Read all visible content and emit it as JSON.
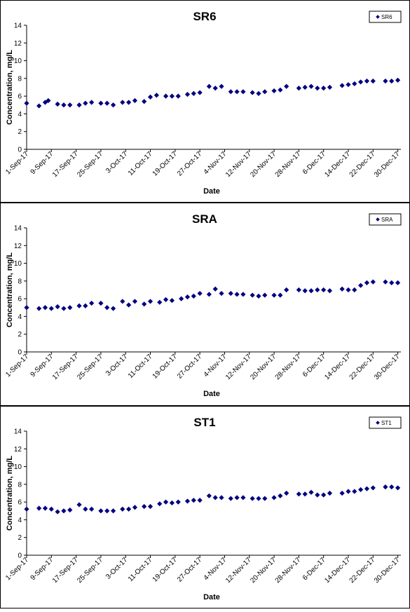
{
  "chart_data": [
    {
      "type": "scatter",
      "title": "SR6",
      "xlabel": "Date",
      "ylabel": "Concentration, mg/L",
      "ylim": [
        0,
        14
      ],
      "yticks": [
        "0",
        "2",
        "4",
        "6",
        "8",
        "10",
        "12",
        "14"
      ],
      "xlim": [
        "2017-09-01",
        "2017-12-31"
      ],
      "xtick_labels": [
        "1-Sep-17",
        "9-Sep-17",
        "17-Sep-17",
        "25-Sep-17",
        "3-Oct-17",
        "11-Oct-17",
        "19-Oct-17",
        "27-Oct-17",
        "4-Nov-17",
        "12-Nov-17",
        "20-Nov-17",
        "28-Nov-17",
        "6-Dec-17",
        "14-Dec-17",
        "22-Dec-17",
        "30-Dec-17"
      ],
      "grid": false,
      "legend_position": "top-right",
      "series": [
        {
          "name": "SR6",
          "color": "#000080",
          "marker": "diamond",
          "x": [
            "2017-09-01",
            "2017-09-05",
            "2017-09-07",
            "2017-09-08",
            "2017-09-11",
            "2017-09-13",
            "2017-09-15",
            "2017-09-18",
            "2017-09-20",
            "2017-09-22",
            "2017-09-25",
            "2017-09-27",
            "2017-09-29",
            "2017-10-02",
            "2017-10-04",
            "2017-10-06",
            "2017-10-09",
            "2017-10-11",
            "2017-10-13",
            "2017-10-16",
            "2017-10-18",
            "2017-10-20",
            "2017-10-23",
            "2017-10-25",
            "2017-10-27",
            "2017-10-30",
            "2017-11-01",
            "2017-11-03",
            "2017-11-06",
            "2017-11-08",
            "2017-11-10",
            "2017-11-13",
            "2017-11-15",
            "2017-11-17",
            "2017-11-20",
            "2017-11-22",
            "2017-11-24",
            "2017-11-28",
            "2017-11-30",
            "2017-12-02",
            "2017-12-04",
            "2017-12-06",
            "2017-12-08",
            "2017-12-12",
            "2017-12-14",
            "2017-12-16",
            "2017-12-18",
            "2017-12-20",
            "2017-12-22",
            "2017-12-26",
            "2017-12-28",
            "2017-12-30"
          ],
          "y": [
            5.2,
            4.9,
            5.3,
            5.5,
            5.1,
            5.0,
            5.0,
            5.0,
            5.2,
            5.3,
            5.2,
            5.2,
            5.0,
            5.3,
            5.3,
            5.5,
            5.4,
            5.9,
            6.1,
            6.0,
            6.0,
            6.0,
            6.2,
            6.3,
            6.4,
            7.1,
            6.9,
            7.1,
            6.5,
            6.5,
            6.5,
            6.4,
            6.3,
            6.5,
            6.6,
            6.7,
            7.1,
            6.9,
            7.0,
            7.1,
            6.9,
            6.9,
            7.0,
            7.2,
            7.3,
            7.4,
            7.6,
            7.7,
            7.7,
            7.7,
            7.7,
            7.8
          ]
        }
      ]
    },
    {
      "type": "scatter",
      "title": "SRA",
      "xlabel": "Date",
      "ylabel": "Concentration, mg/L",
      "ylim": [
        0,
        14
      ],
      "yticks": [
        "0",
        "2",
        "4",
        "6",
        "8",
        "10",
        "12",
        "14"
      ],
      "xlim": [
        "2017-09-01",
        "2017-12-31"
      ],
      "xtick_labels": [
        "1-Sep-17",
        "9-Sep-17",
        "17-Sep-17",
        "25-Sep-17",
        "3-Oct-17",
        "11-Oct-17",
        "19-Oct-17",
        "27-Oct-17",
        "4-Nov-17",
        "12-Nov-17",
        "20-Nov-17",
        "28-Nov-17",
        "6-Dec-17",
        "14-Dec-17",
        "22-Dec-17",
        "30-Dec-17"
      ],
      "grid": false,
      "legend_position": "top-right",
      "series": [
        {
          "name": "SRA",
          "color": "#000080",
          "marker": "diamond",
          "x": [
            "2017-09-01",
            "2017-09-05",
            "2017-09-07",
            "2017-09-09",
            "2017-09-11",
            "2017-09-13",
            "2017-09-15",
            "2017-09-18",
            "2017-09-20",
            "2017-09-22",
            "2017-09-25",
            "2017-09-27",
            "2017-09-29",
            "2017-10-02",
            "2017-10-04",
            "2017-10-06",
            "2017-10-09",
            "2017-10-11",
            "2017-10-14",
            "2017-10-16",
            "2017-10-18",
            "2017-10-21",
            "2017-10-23",
            "2017-10-25",
            "2017-10-27",
            "2017-10-30",
            "2017-11-01",
            "2017-11-03",
            "2017-11-06",
            "2017-11-08",
            "2017-11-10",
            "2017-11-13",
            "2017-11-15",
            "2017-11-17",
            "2017-11-20",
            "2017-11-22",
            "2017-11-24",
            "2017-11-28",
            "2017-11-30",
            "2017-12-02",
            "2017-12-04",
            "2017-12-06",
            "2017-12-08",
            "2017-12-12",
            "2017-12-14",
            "2017-12-16",
            "2017-12-18",
            "2017-12-20",
            "2017-12-22",
            "2017-12-26",
            "2017-12-28",
            "2017-12-30"
          ],
          "y": [
            5.0,
            4.9,
            5.0,
            4.9,
            5.1,
            4.9,
            5.0,
            5.2,
            5.2,
            5.5,
            5.5,
            5.0,
            4.9,
            5.7,
            5.3,
            5.7,
            5.4,
            5.7,
            5.6,
            5.9,
            5.8,
            6.0,
            6.2,
            6.3,
            6.6,
            6.5,
            7.1,
            6.6,
            6.6,
            6.5,
            6.5,
            6.4,
            6.3,
            6.4,
            6.4,
            6.4,
            7.0,
            7.0,
            6.9,
            6.9,
            7.0,
            7.0,
            6.9,
            7.1,
            7.0,
            7.0,
            7.5,
            7.8,
            7.9,
            7.9,
            7.8,
            7.8
          ]
        }
      ]
    },
    {
      "type": "scatter",
      "title": "ST1",
      "xlabel": "Date",
      "ylabel": "Concentration, mg/L",
      "ylim": [
        0,
        14
      ],
      "yticks": [
        "0",
        "2",
        "4",
        "6",
        "8",
        "10",
        "12",
        "14"
      ],
      "xlim": [
        "2017-09-01",
        "2017-12-31"
      ],
      "xtick_labels": [
        "1-Sep-17",
        "9-Sep-17",
        "17-Sep-17",
        "25-Sep-17",
        "3-Oct-17",
        "11-Oct-17",
        "19-Oct-17",
        "27-Oct-17",
        "4-Nov-17",
        "12-Nov-17",
        "20-Nov-17",
        "28-Nov-17",
        "6-Dec-17",
        "14-Dec-17",
        "22-Dec-17",
        "30-Dec-17"
      ],
      "grid": false,
      "legend_position": "top-right",
      "series": [
        {
          "name": "ST1",
          "color": "#000080",
          "marker": "diamond",
          "x": [
            "2017-09-01",
            "2017-09-05",
            "2017-09-07",
            "2017-09-09",
            "2017-09-11",
            "2017-09-13",
            "2017-09-15",
            "2017-09-18",
            "2017-09-20",
            "2017-09-22",
            "2017-09-25",
            "2017-09-27",
            "2017-09-29",
            "2017-10-02",
            "2017-10-04",
            "2017-10-06",
            "2017-10-09",
            "2017-10-11",
            "2017-10-14",
            "2017-10-16",
            "2017-10-18",
            "2017-10-20",
            "2017-10-23",
            "2017-10-25",
            "2017-10-27",
            "2017-10-30",
            "2017-11-01",
            "2017-11-03",
            "2017-11-06",
            "2017-11-08",
            "2017-11-10",
            "2017-11-13",
            "2017-11-15",
            "2017-11-17",
            "2017-11-20",
            "2017-11-22",
            "2017-11-24",
            "2017-11-28",
            "2017-11-30",
            "2017-12-02",
            "2017-12-04",
            "2017-12-06",
            "2017-12-08",
            "2017-12-12",
            "2017-12-14",
            "2017-12-16",
            "2017-12-18",
            "2017-12-20",
            "2017-12-22",
            "2017-12-26",
            "2017-12-28",
            "2017-12-30"
          ],
          "y": [
            5.2,
            5.3,
            5.3,
            5.2,
            4.9,
            5.0,
            5.1,
            5.7,
            5.2,
            5.2,
            5.0,
            5.0,
            5.0,
            5.2,
            5.2,
            5.4,
            5.5,
            5.5,
            5.8,
            6.0,
            5.9,
            6.0,
            6.1,
            6.2,
            6.2,
            6.7,
            6.5,
            6.5,
            6.4,
            6.5,
            6.5,
            6.4,
            6.4,
            6.4,
            6.5,
            6.7,
            7.0,
            6.9,
            6.9,
            7.1,
            6.8,
            6.8,
            7.0,
            7.0,
            7.2,
            7.2,
            7.4,
            7.5,
            7.6,
            7.7,
            7.7,
            7.6
          ]
        }
      ]
    }
  ]
}
